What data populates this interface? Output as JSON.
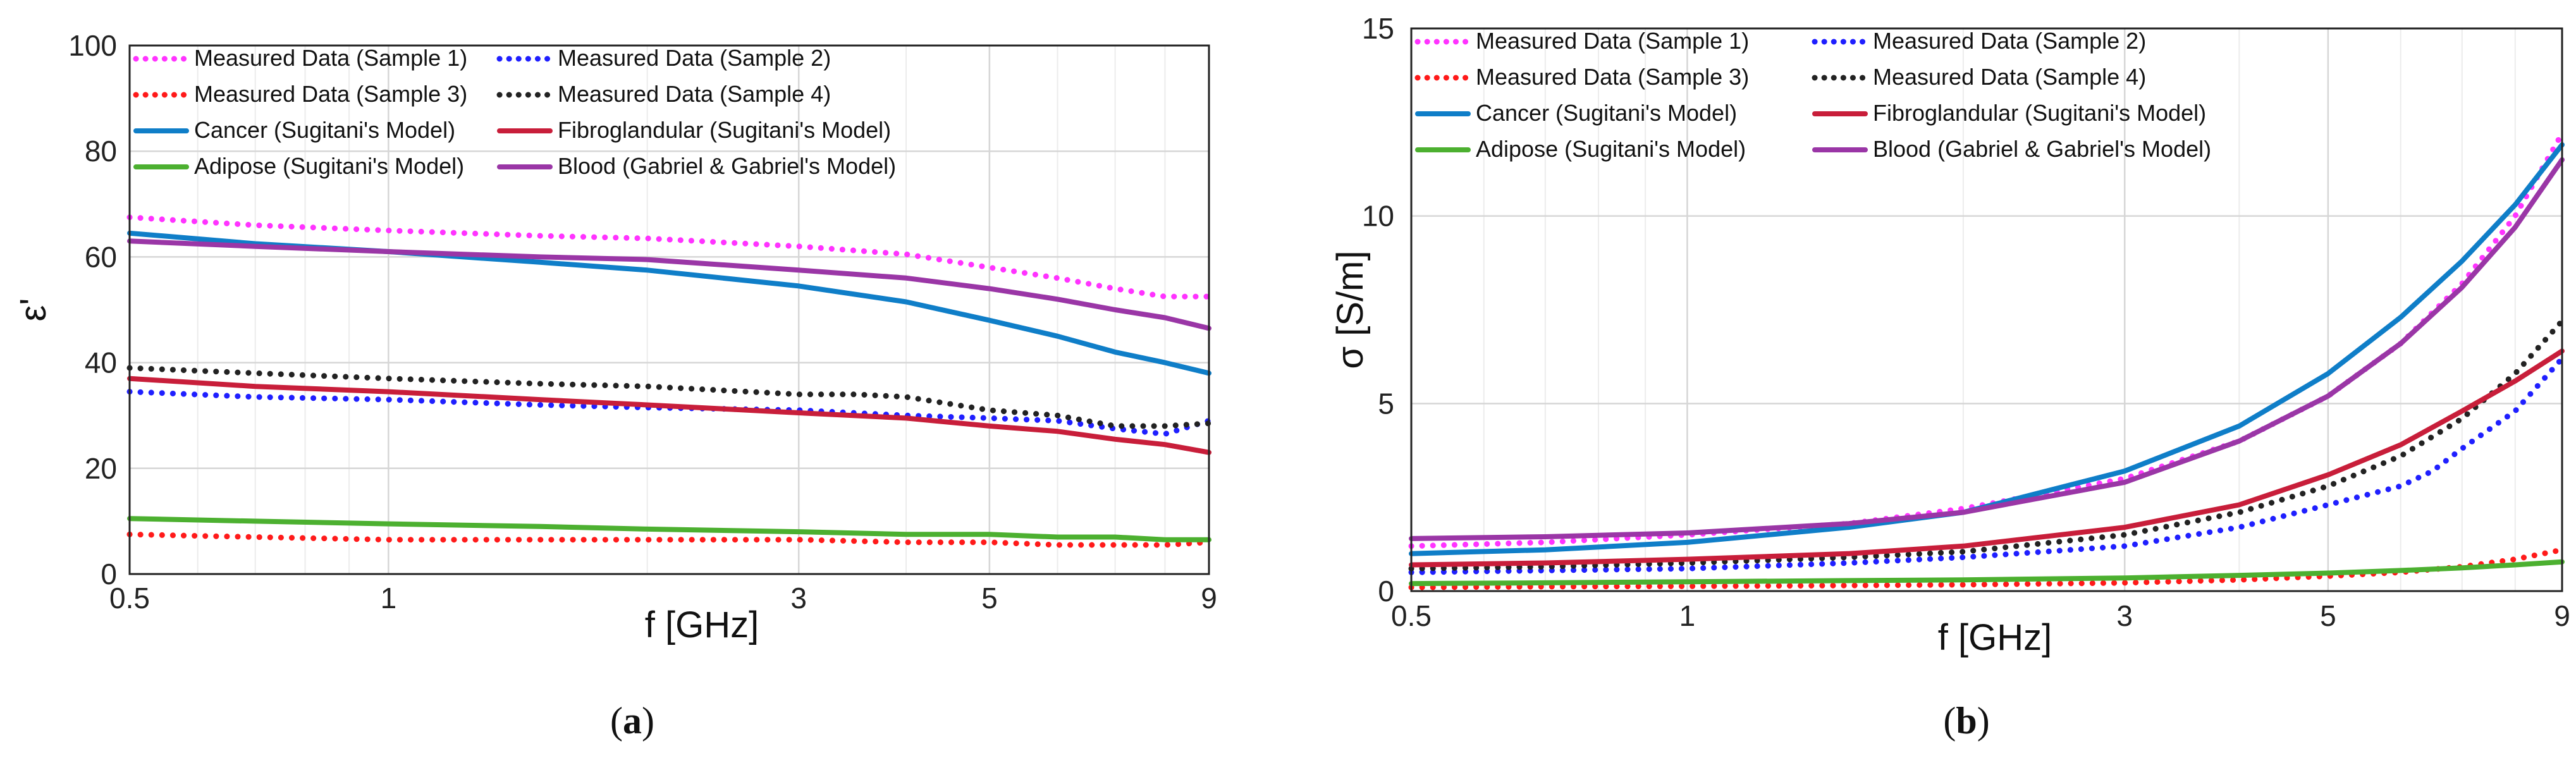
{
  "chart_data": [
    {
      "type": "line",
      "panel_label": "a",
      "xlabel": "f [GHz]",
      "ylabel": "ε'",
      "xscale": "log",
      "xlim": [
        0.5,
        9
      ],
      "ylim": [
        0,
        100
      ],
      "xticks": [
        0.5,
        1,
        3,
        5,
        9
      ],
      "xtick_labels": [
        "0.5",
        "1",
        "3",
        "5",
        "9"
      ],
      "yticks": [
        0,
        20,
        40,
        60,
        80,
        100
      ],
      "ytick_labels": [
        "0",
        "20",
        "40",
        "60",
        "80",
        "100"
      ],
      "grid": true,
      "legend_position": "top",
      "series": [
        {
          "name": "Measured Data (Sample 1)",
          "color": "#ff33ff",
          "style": "dotted",
          "x": [
            0.5,
            0.7,
            1,
            1.5,
            2,
            3,
            4,
            5,
            6,
            7,
            8,
            9
          ],
          "y": [
            67.5,
            66,
            65,
            64,
            63.5,
            62,
            60.5,
            58,
            56,
            54,
            52.5,
            52.5
          ]
        },
        {
          "name": "Measured Data (Sample 2)",
          "color": "#1f1fff",
          "style": "dotted",
          "x": [
            0.5,
            0.7,
            1,
            1.5,
            2,
            3,
            4,
            5,
            6,
            7,
            8,
            9
          ],
          "y": [
            34.5,
            33.5,
            33,
            32,
            31.5,
            31,
            30,
            29.5,
            29,
            27.5,
            26.5,
            29
          ]
        },
        {
          "name": "Measured Data (Sample 3)",
          "color": "#ff1a1a",
          "style": "dotted",
          "x": [
            0.5,
            0.7,
            1,
            1.5,
            2,
            3,
            4,
            5,
            6,
            7,
            8,
            9
          ],
          "y": [
            7.5,
            7,
            6.5,
            6.5,
            6.5,
            6.5,
            6,
            6,
            5.5,
            5.5,
            5.5,
            6
          ]
        },
        {
          "name": "Measured Data (Sample 4)",
          "color": "#222222",
          "style": "dotted",
          "x": [
            0.5,
            0.7,
            1,
            1.5,
            2,
            3,
            3.5,
            4,
            5,
            6,
            7,
            8,
            9
          ],
          "y": [
            39,
            38,
            37,
            36,
            35.5,
            34,
            34,
            33.5,
            31,
            30,
            28,
            28,
            28.5
          ]
        },
        {
          "name": "Cancer (Sugitani's Model)",
          "color": "#0f7ec8",
          "style": "solid",
          "x": [
            0.5,
            0.7,
            1,
            1.5,
            2,
            3,
            4,
            5,
            6,
            7,
            8,
            9
          ],
          "y": [
            64.5,
            62.5,
            61,
            59,
            57.5,
            54.5,
            51.5,
            48,
            45,
            42,
            40,
            38
          ]
        },
        {
          "name": "Fibroglandular (Sugitani's Model)",
          "color": "#c81e3a",
          "style": "solid",
          "x": [
            0.5,
            0.7,
            1,
            1.5,
            2,
            3,
            4,
            5,
            6,
            7,
            8,
            9
          ],
          "y": [
            37,
            35.5,
            34.5,
            33,
            32,
            30.5,
            29.5,
            28,
            27,
            25.5,
            24.5,
            23
          ]
        },
        {
          "name": "Adipose (Sugitani's Model)",
          "color": "#4cb030",
          "style": "solid",
          "x": [
            0.5,
            0.7,
            1,
            1.5,
            2,
            3,
            4,
            5,
            6,
            7,
            8,
            9
          ],
          "y": [
            10.5,
            10,
            9.5,
            9,
            8.5,
            8,
            7.5,
            7.5,
            7,
            7,
            6.5,
            6.5
          ]
        },
        {
          "name": "Blood (Gabriel & Gabriel's Model)",
          "color": "#9a36a6",
          "style": "solid",
          "x": [
            0.5,
            0.7,
            1,
            1.5,
            2,
            3,
            4,
            5,
            6,
            7,
            8,
            9
          ],
          "y": [
            63,
            62,
            61,
            60,
            59.5,
            57.5,
            56,
            54,
            52,
            50,
            48.5,
            46.5
          ]
        }
      ]
    },
    {
      "type": "line",
      "panel_label": "b",
      "xlabel": "f [GHz]",
      "ylabel": "σ [S/m]",
      "xscale": "log",
      "xlim": [
        0.5,
        9
      ],
      "ylim": [
        0,
        15
      ],
      "xticks": [
        0.5,
        1,
        3,
        5,
        9
      ],
      "xtick_labels": [
        "0.5",
        "1",
        "3",
        "5",
        "9"
      ],
      "yticks": [
        0,
        5,
        10,
        15
      ],
      "ytick_labels": [
        "0",
        "5",
        "10",
        "15"
      ],
      "grid": true,
      "legend_position": "top",
      "series": [
        {
          "name": "Measured Data (Sample 1)",
          "color": "#ff33ff",
          "style": "dotted",
          "x": [
            0.5,
            0.7,
            1,
            1.5,
            2,
            3,
            4,
            5,
            6,
            7,
            8,
            9
          ],
          "y": [
            1.2,
            1.3,
            1.5,
            1.8,
            2.2,
            3.0,
            4.0,
            5.2,
            6.6,
            8.2,
            10.0,
            12.2
          ]
        },
        {
          "name": "Measured Data (Sample 2)",
          "color": "#1f1fff",
          "style": "dotted",
          "x": [
            0.5,
            0.7,
            1,
            1.5,
            2,
            3,
            4,
            5,
            6,
            6.5,
            7,
            8,
            9
          ],
          "y": [
            0.5,
            0.55,
            0.6,
            0.75,
            0.9,
            1.2,
            1.7,
            2.3,
            2.8,
            3.2,
            3.8,
            4.8,
            6.2
          ]
        },
        {
          "name": "Measured Data (Sample 3)",
          "color": "#ff1a1a",
          "style": "dotted",
          "x": [
            0.5,
            0.7,
            1,
            1.5,
            2,
            3,
            4,
            5,
            6,
            7,
            8,
            9
          ],
          "y": [
            0.1,
            0.12,
            0.13,
            0.15,
            0.17,
            0.22,
            0.3,
            0.4,
            0.5,
            0.65,
            0.85,
            1.1
          ]
        },
        {
          "name": "Measured Data (Sample 4)",
          "color": "#222222",
          "style": "dotted",
          "x": [
            0.5,
            0.7,
            1,
            1.5,
            2,
            3,
            4,
            5,
            6,
            7,
            8,
            9
          ],
          "y": [
            0.6,
            0.65,
            0.75,
            0.9,
            1.05,
            1.5,
            2.1,
            2.8,
            3.6,
            4.6,
            5.8,
            7.2
          ]
        },
        {
          "name": "Cancer (Sugitani's Model)",
          "color": "#0f7ec8",
          "style": "solid",
          "x": [
            0.5,
            0.7,
            1,
            1.5,
            2,
            3,
            4,
            5,
            6,
            7,
            8,
            9
          ],
          "y": [
            1.0,
            1.1,
            1.3,
            1.7,
            2.1,
            3.2,
            4.4,
            5.8,
            7.3,
            8.8,
            10.3,
            11.9
          ]
        },
        {
          "name": "Fibroglandular (Sugitani's Model)",
          "color": "#c81e3a",
          "style": "solid",
          "x": [
            0.5,
            0.7,
            1,
            1.5,
            2,
            3,
            4,
            5,
            6,
            7,
            8,
            9
          ],
          "y": [
            0.7,
            0.75,
            0.85,
            1.0,
            1.2,
            1.7,
            2.3,
            3.1,
            3.9,
            4.8,
            5.6,
            6.4
          ]
        },
        {
          "name": "Adipose (Sugitani's Model)",
          "color": "#4cb030",
          "style": "solid",
          "x": [
            0.5,
            0.7,
            1,
            1.5,
            2,
            3,
            4,
            5,
            6,
            7,
            8,
            9
          ],
          "y": [
            0.2,
            0.22,
            0.25,
            0.28,
            0.3,
            0.35,
            0.42,
            0.48,
            0.55,
            0.62,
            0.7,
            0.78
          ]
        },
        {
          "name": "Blood (Gabriel & Gabriel's Model)",
          "color": "#9a36a6",
          "style": "solid",
          "x": [
            0.5,
            0.7,
            1,
            1.5,
            2,
            3,
            4,
            5,
            6,
            7,
            8,
            9
          ],
          "y": [
            1.4,
            1.45,
            1.55,
            1.8,
            2.1,
            2.9,
            4.0,
            5.2,
            6.6,
            8.1,
            9.7,
            11.5
          ]
        }
      ]
    }
  ],
  "captions": {
    "a": {
      "open": "(",
      "letter": "a",
      "close": ")"
    },
    "b": {
      "open": "(",
      "letter": "b",
      "close": ")"
    }
  }
}
